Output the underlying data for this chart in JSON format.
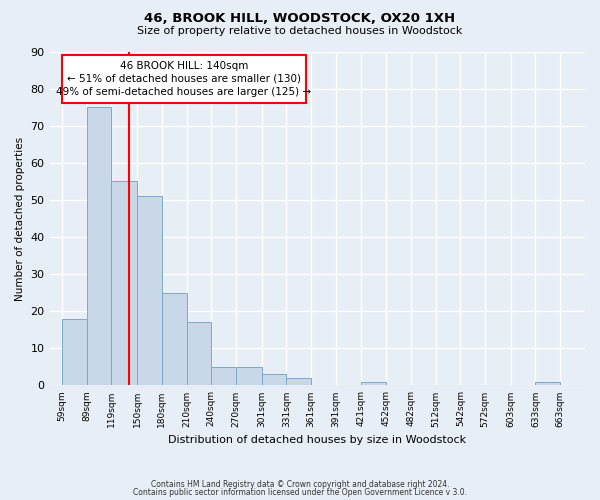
{
  "title": "46, BROOK HILL, WOODSTOCK, OX20 1XH",
  "subtitle": "Size of property relative to detached houses in Woodstock",
  "xlabel": "Distribution of detached houses by size in Woodstock",
  "ylabel": "Number of detached properties",
  "footnote1": "Contains HM Land Registry data © Crown copyright and database right 2024.",
  "footnote2": "Contains public sector information licensed under the Open Government Licence v 3.0.",
  "bar_left_edges": [
    59,
    89,
    119,
    150,
    180,
    210,
    240,
    270,
    301,
    331,
    361,
    391,
    421,
    452,
    482,
    512,
    542,
    572,
    603,
    633
  ],
  "bar_widths": [
    30,
    30,
    31,
    30,
    30,
    30,
    30,
    31,
    30,
    30,
    30,
    30,
    31,
    30,
    30,
    30,
    30,
    31,
    30,
    30
  ],
  "bar_heights": [
    18,
    75,
    55,
    51,
    25,
    17,
    5,
    5,
    3,
    2,
    0,
    0,
    1,
    0,
    0,
    0,
    0,
    0,
    0,
    1
  ],
  "bar_color": "#c8d8e8",
  "bar_edge_color": "#7aaac8",
  "tick_labels": [
    "59sqm",
    "89sqm",
    "119sqm",
    "150sqm",
    "180sqm",
    "210sqm",
    "240sqm",
    "270sqm",
    "301sqm",
    "331sqm",
    "361sqm",
    "391sqm",
    "421sqm",
    "452sqm",
    "482sqm",
    "512sqm",
    "542sqm",
    "572sqm",
    "603sqm",
    "633sqm",
    "663sqm"
  ],
  "tick_positions": [
    59,
    89,
    119,
    150,
    180,
    210,
    240,
    270,
    301,
    331,
    361,
    391,
    421,
    452,
    482,
    512,
    542,
    572,
    603,
    633,
    663
  ],
  "ylim": [
    0,
    90
  ],
  "yticks": [
    0,
    10,
    20,
    30,
    40,
    50,
    60,
    70,
    80,
    90
  ],
  "xlim": [
    44,
    693
  ],
  "red_line_x": 140,
  "annotation_title": "46 BROOK HILL: 140sqm",
  "annotation_line2": "← 51% of detached houses are smaller (130)",
  "annotation_line3": "49% of semi-detached houses are larger (125) →",
  "background_color": "#e8eef5",
  "plot_bg_color": "#e8eef5",
  "grid_color": "#ffffff"
}
